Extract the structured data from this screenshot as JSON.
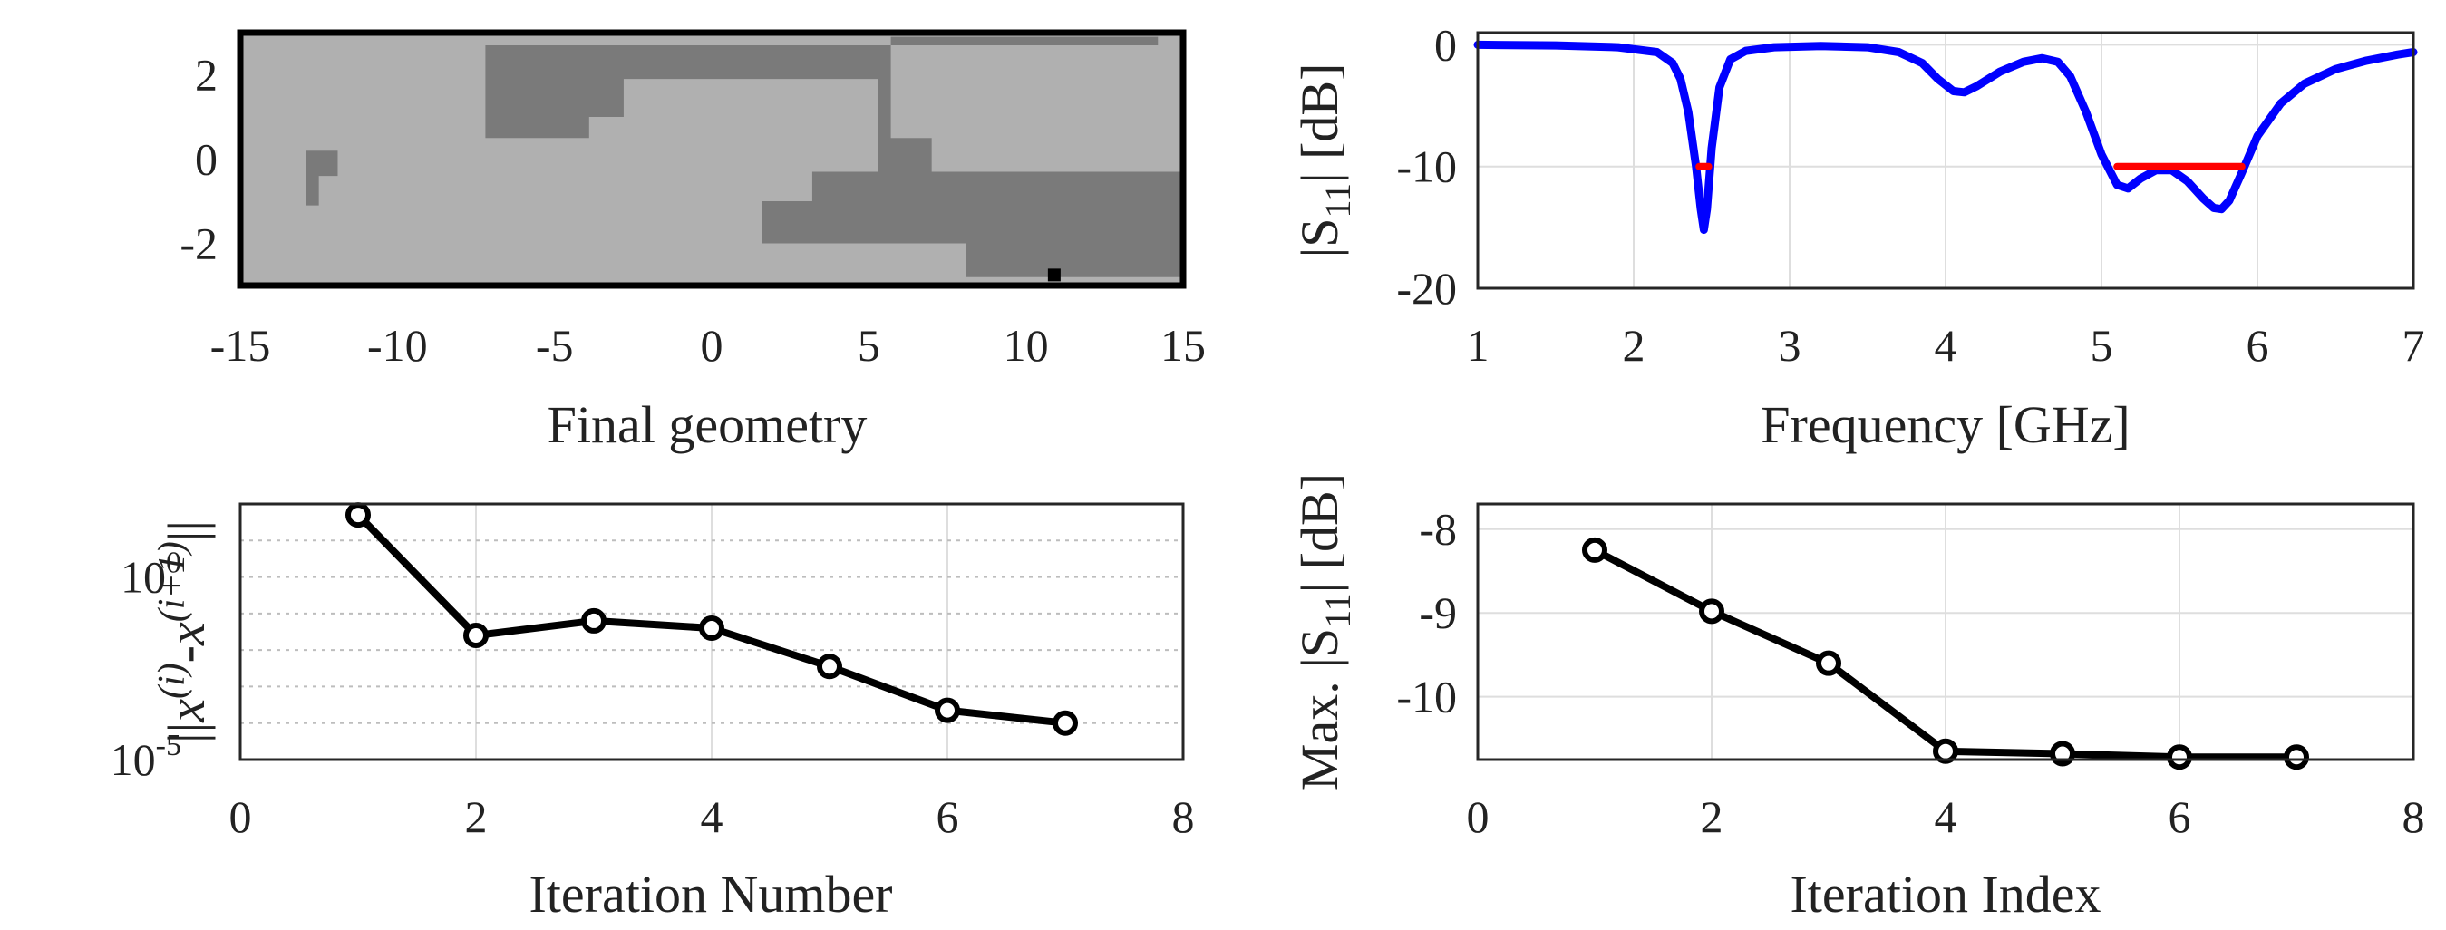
{
  "chart_data": [
    {
      "id": "geometry",
      "type": "heatmap",
      "title": "",
      "xlabel": "Final geometry",
      "ylabel": "",
      "xlim": [
        -15,
        15
      ],
      "ylim": [
        -3,
        3
      ],
      "xticks": [
        "-15",
        "-10",
        "-5",
        "0",
        "5",
        "10",
        "15"
      ],
      "yticks": [
        "2",
        "0",
        "-2"
      ],
      "colors": {
        "background": "#b0b0b0",
        "metal": "#7a7a7a",
        "feed": "#000000",
        "border": "#000000"
      },
      "regions": [
        {
          "name": "upper-left-metal",
          "polygon": [
            [
              -7.2,
              2.7
            ],
            [
              -7.2,
              0.5
            ],
            [
              -3.9,
              0.5
            ],
            [
              -3.9,
              1.0
            ],
            [
              -2.8,
              1.0
            ],
            [
              -2.8,
              1.9
            ],
            [
              5.3,
              1.9
            ],
            [
              5.3,
              -0.6
            ],
            [
              4.7,
              -0.6
            ],
            [
              4.7,
              -0.3
            ],
            [
              7.0,
              -0.3
            ],
            [
              7.0,
              0.5
            ],
            [
              5.7,
              0.5
            ],
            [
              5.7,
              2.7
            ]
          ]
        },
        {
          "name": "top-right-strip",
          "polygon": [
            [
              5.7,
              2.9
            ],
            [
              14.2,
              2.9
            ],
            [
              14.2,
              2.7
            ],
            [
              5.7,
              2.7
            ]
          ]
        },
        {
          "name": "right-feed-metal",
          "polygon": [
            [
              3.2,
              -0.3
            ],
            [
              15,
              -0.3
            ],
            [
              15,
              -2.8
            ],
            [
              8.1,
              -2.8
            ],
            [
              8.1,
              -2.0
            ],
            [
              1.6,
              -2.0
            ],
            [
              1.6,
              -1.0
            ],
            [
              3.2,
              -1.0
            ]
          ]
        },
        {
          "name": "small-left-patch",
          "polygon": [
            [
              -12.9,
              0.2
            ],
            [
              -11.9,
              0.2
            ],
            [
              -11.9,
              -0.4
            ],
            [
              -12.5,
              -0.4
            ],
            [
              -12.5,
              -1.1
            ],
            [
              -12.9,
              -1.1
            ]
          ]
        }
      ],
      "feed_point": [
        10.9,
        -2.75
      ]
    },
    {
      "id": "s11",
      "type": "line",
      "title": "",
      "xlabel": "Frequency [GHz]",
      "ylabel_parts": [
        "|S",
        "11",
        "| [dB]"
      ],
      "xlim": [
        1,
        7
      ],
      "ylim": [
        -20,
        1
      ],
      "xticks": [
        "1",
        "2",
        "3",
        "4",
        "5",
        "6",
        "7"
      ],
      "yticks": [
        "0",
        "-10",
        "-20"
      ],
      "series": [
        {
          "name": "|S11|",
          "color": "#0000ff",
          "x": [
            1.0,
            1.5,
            1.9,
            2.15,
            2.25,
            2.3,
            2.35,
            2.4,
            2.43,
            2.45,
            2.47,
            2.5,
            2.55,
            2.62,
            2.72,
            2.9,
            3.2,
            3.5,
            3.7,
            3.85,
            3.95,
            4.05,
            4.12,
            4.2,
            4.35,
            4.5,
            4.62,
            4.72,
            4.8,
            4.9,
            5.0,
            5.1,
            5.17,
            5.25,
            5.35,
            5.45,
            5.55,
            5.65,
            5.72,
            5.77,
            5.82,
            5.9,
            6.0,
            6.15,
            6.3,
            6.5,
            6.7,
            6.9,
            7.0
          ],
          "values": [
            0.0,
            -0.05,
            -0.2,
            -0.6,
            -1.5,
            -2.8,
            -5.5,
            -10.0,
            -13.5,
            -15.2,
            -13.5,
            -8.5,
            -3.5,
            -1.2,
            -0.5,
            -0.2,
            -0.1,
            -0.2,
            -0.6,
            -1.5,
            -2.8,
            -3.8,
            -3.9,
            -3.4,
            -2.2,
            -1.4,
            -1.1,
            -1.4,
            -2.6,
            -5.5,
            -9.0,
            -11.5,
            -11.8,
            -11.0,
            -10.3,
            -10.3,
            -11.2,
            -12.6,
            -13.4,
            -13.5,
            -12.8,
            -10.5,
            -7.5,
            -4.8,
            -3.2,
            -2.0,
            -1.3,
            -0.8,
            -0.6
          ]
        },
        {
          "name": "target-2.45",
          "color": "#ff0000",
          "x": [
            2.42,
            2.48
          ],
          "values": [
            -10,
            -10
          ]
        },
        {
          "name": "target-5.1-5.9",
          "color": "#ff0000",
          "x": [
            5.1,
            5.9
          ],
          "values": [
            -10,
            -10
          ]
        }
      ]
    },
    {
      "id": "convergence",
      "type": "line",
      "title": "",
      "xlabel": "Iteration Number",
      "ylabel": "||x(i)-x(i+1)||",
      "yscale": "log",
      "xlim": [
        0,
        8
      ],
      "ylim_log10": [
        -5,
        2
      ],
      "xticks": [
        "0",
        "2",
        "4",
        "6",
        "8"
      ],
      "yticks": [
        {
          "base": "10",
          "exp": "0",
          "log10": 0
        },
        {
          "base": "10",
          "exp": "-5",
          "log10": -5
        }
      ],
      "ylabel_parts": {
        "open": "||",
        "x1": "x",
        "sup1": "(i)",
        "minus": "-",
        "x2": "x",
        "sup2": "(i+1)",
        "close": "||"
      },
      "minor_grid_log10": [
        1.0,
        0.0,
        -1.0,
        -2.0,
        -3.0,
        -4.0
      ],
      "series": [
        {
          "name": "step norm",
          "color": "#000000",
          "x": [
            1,
            2,
            3,
            4,
            5,
            6,
            7
          ],
          "values_log10": [
            1.7,
            -1.6,
            -1.2,
            -1.4,
            -2.45,
            -3.65,
            -4.0
          ]
        }
      ]
    },
    {
      "id": "max-s11",
      "type": "line",
      "title": "",
      "xlabel": "Iteration Index",
      "ylabel_parts": [
        "Max. |S",
        "11",
        "| [dB]"
      ],
      "xlim": [
        0,
        8
      ],
      "ylim": [
        -10.75,
        -7.7
      ],
      "xticks": [
        "0",
        "2",
        "4",
        "6",
        "8"
      ],
      "yticks": [
        "-8",
        "-9",
        "-10"
      ],
      "series": [
        {
          "name": "max |S11|",
          "color": "#000000",
          "x": [
            1,
            2,
            3,
            4,
            5,
            6,
            7
          ],
          "values": [
            -8.25,
            -8.98,
            -9.6,
            -10.65,
            -10.68,
            -10.72,
            -10.72
          ]
        }
      ]
    }
  ]
}
